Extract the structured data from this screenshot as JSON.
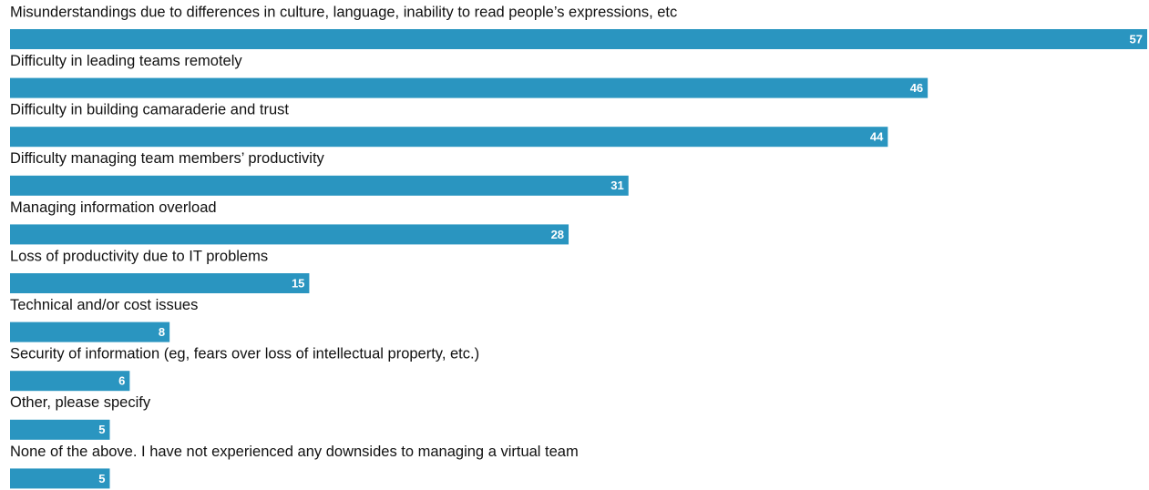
{
  "chart_data": {
    "type": "bar",
    "orientation": "horizontal",
    "color": "#2a95c0",
    "categories": [
      "Misunderstandings due to differences in culture, language, inability to read people’s expressions, etc",
      "Difficulty in leading teams remotely",
      "Difficulty in building camaraderie and trust",
      "Difficulty managing team members’ productivity",
      "Managing information overload",
      "Loss of productivity due to IT problems",
      "Technical and/or cost issues",
      "Security of information (eg, fears over loss of intellectual property, etc.)",
      "Other, please specify",
      "None of the above. I have not experienced any downsides to managing a virtual team"
    ],
    "values": [
      57,
      46,
      44,
      31,
      28,
      15,
      8,
      6,
      5,
      5
    ]
  }
}
